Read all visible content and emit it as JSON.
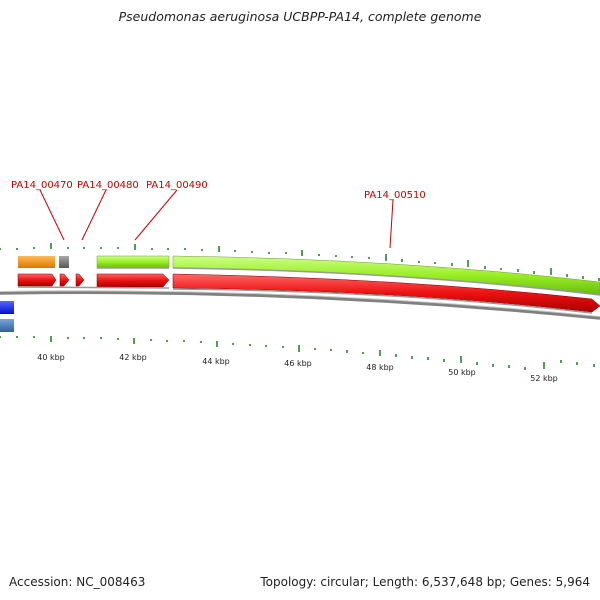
{
  "title": "Pseudomonas aeruginosa UCBPP-PA14, complete genome",
  "footer": {
    "accession_label": "Accession: NC_008463",
    "stats_label": "Topology: circular; Length: 6,537,648 bp; Genes: 5,964"
  },
  "gene_labels": [
    {
      "id": "PA14_00470",
      "text": "PA14_00470"
    },
    {
      "id": "PA14_00480",
      "text": "PA14_00480"
    },
    {
      "id": "PA14_00490",
      "text": "PA14_00490"
    },
    {
      "id": "PA14_00510",
      "text": "PA14_00510"
    }
  ],
  "scale_labels": [
    "40 kbp",
    "42 kbp",
    "44 kbp",
    "46 kbp",
    "48 kbp",
    "50 kbp",
    "52 kbp"
  ],
  "colors": {
    "forward_cds": "#99ee22",
    "reverse_cds": "#ee1111",
    "orange_feature": "#ee8811",
    "grey_feature": "#777777",
    "blue_feature": "#1122ee",
    "steel_feature": "#4477bb",
    "backbone": "#888888",
    "tick": "#1a7a1a",
    "label": "#cc0000"
  }
}
